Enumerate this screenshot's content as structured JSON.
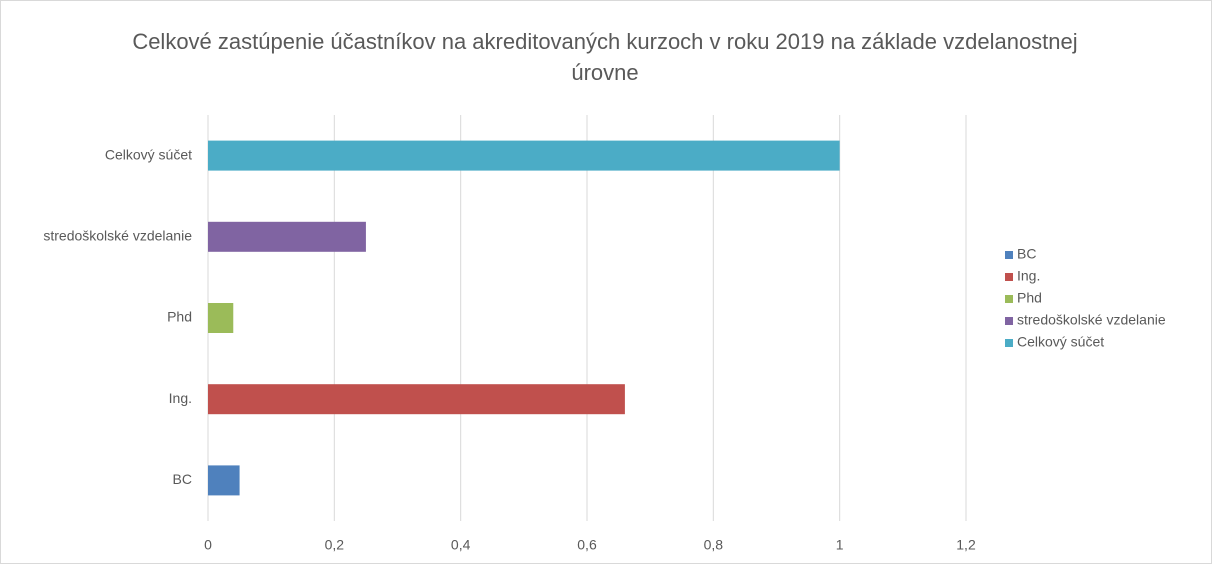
{
  "chart_data": {
    "type": "bar",
    "orientation": "horizontal",
    "title": "Celkové zastúpenie účastníkov na akreditovaných kurzoch v roku 2019 na základe vzdelanostnej úrovne",
    "categories": [
      "BC",
      "Ing.",
      "Phd",
      "stredoškolské vzdelanie",
      "Celkový súčet"
    ],
    "values": [
      0.05,
      0.66,
      0.04,
      0.25,
      1
    ],
    "colors": [
      "#4f81bd",
      "#c0504d",
      "#9bbb59",
      "#8064a2",
      "#4bacc6"
    ],
    "xlim": [
      0,
      1.2
    ],
    "xticks": [
      0,
      {
        "value": 0.2,
        "label": "0,2"
      },
      {
        "value": 0.4,
        "label": "0,4"
      },
      {
        "value": 0.6,
        "label": "0,6"
      },
      {
        "value": 0.8,
        "label": "0,8"
      },
      1,
      {
        "value": 1.2,
        "label": "1,2"
      }
    ],
    "grid": true,
    "legend": "right"
  }
}
